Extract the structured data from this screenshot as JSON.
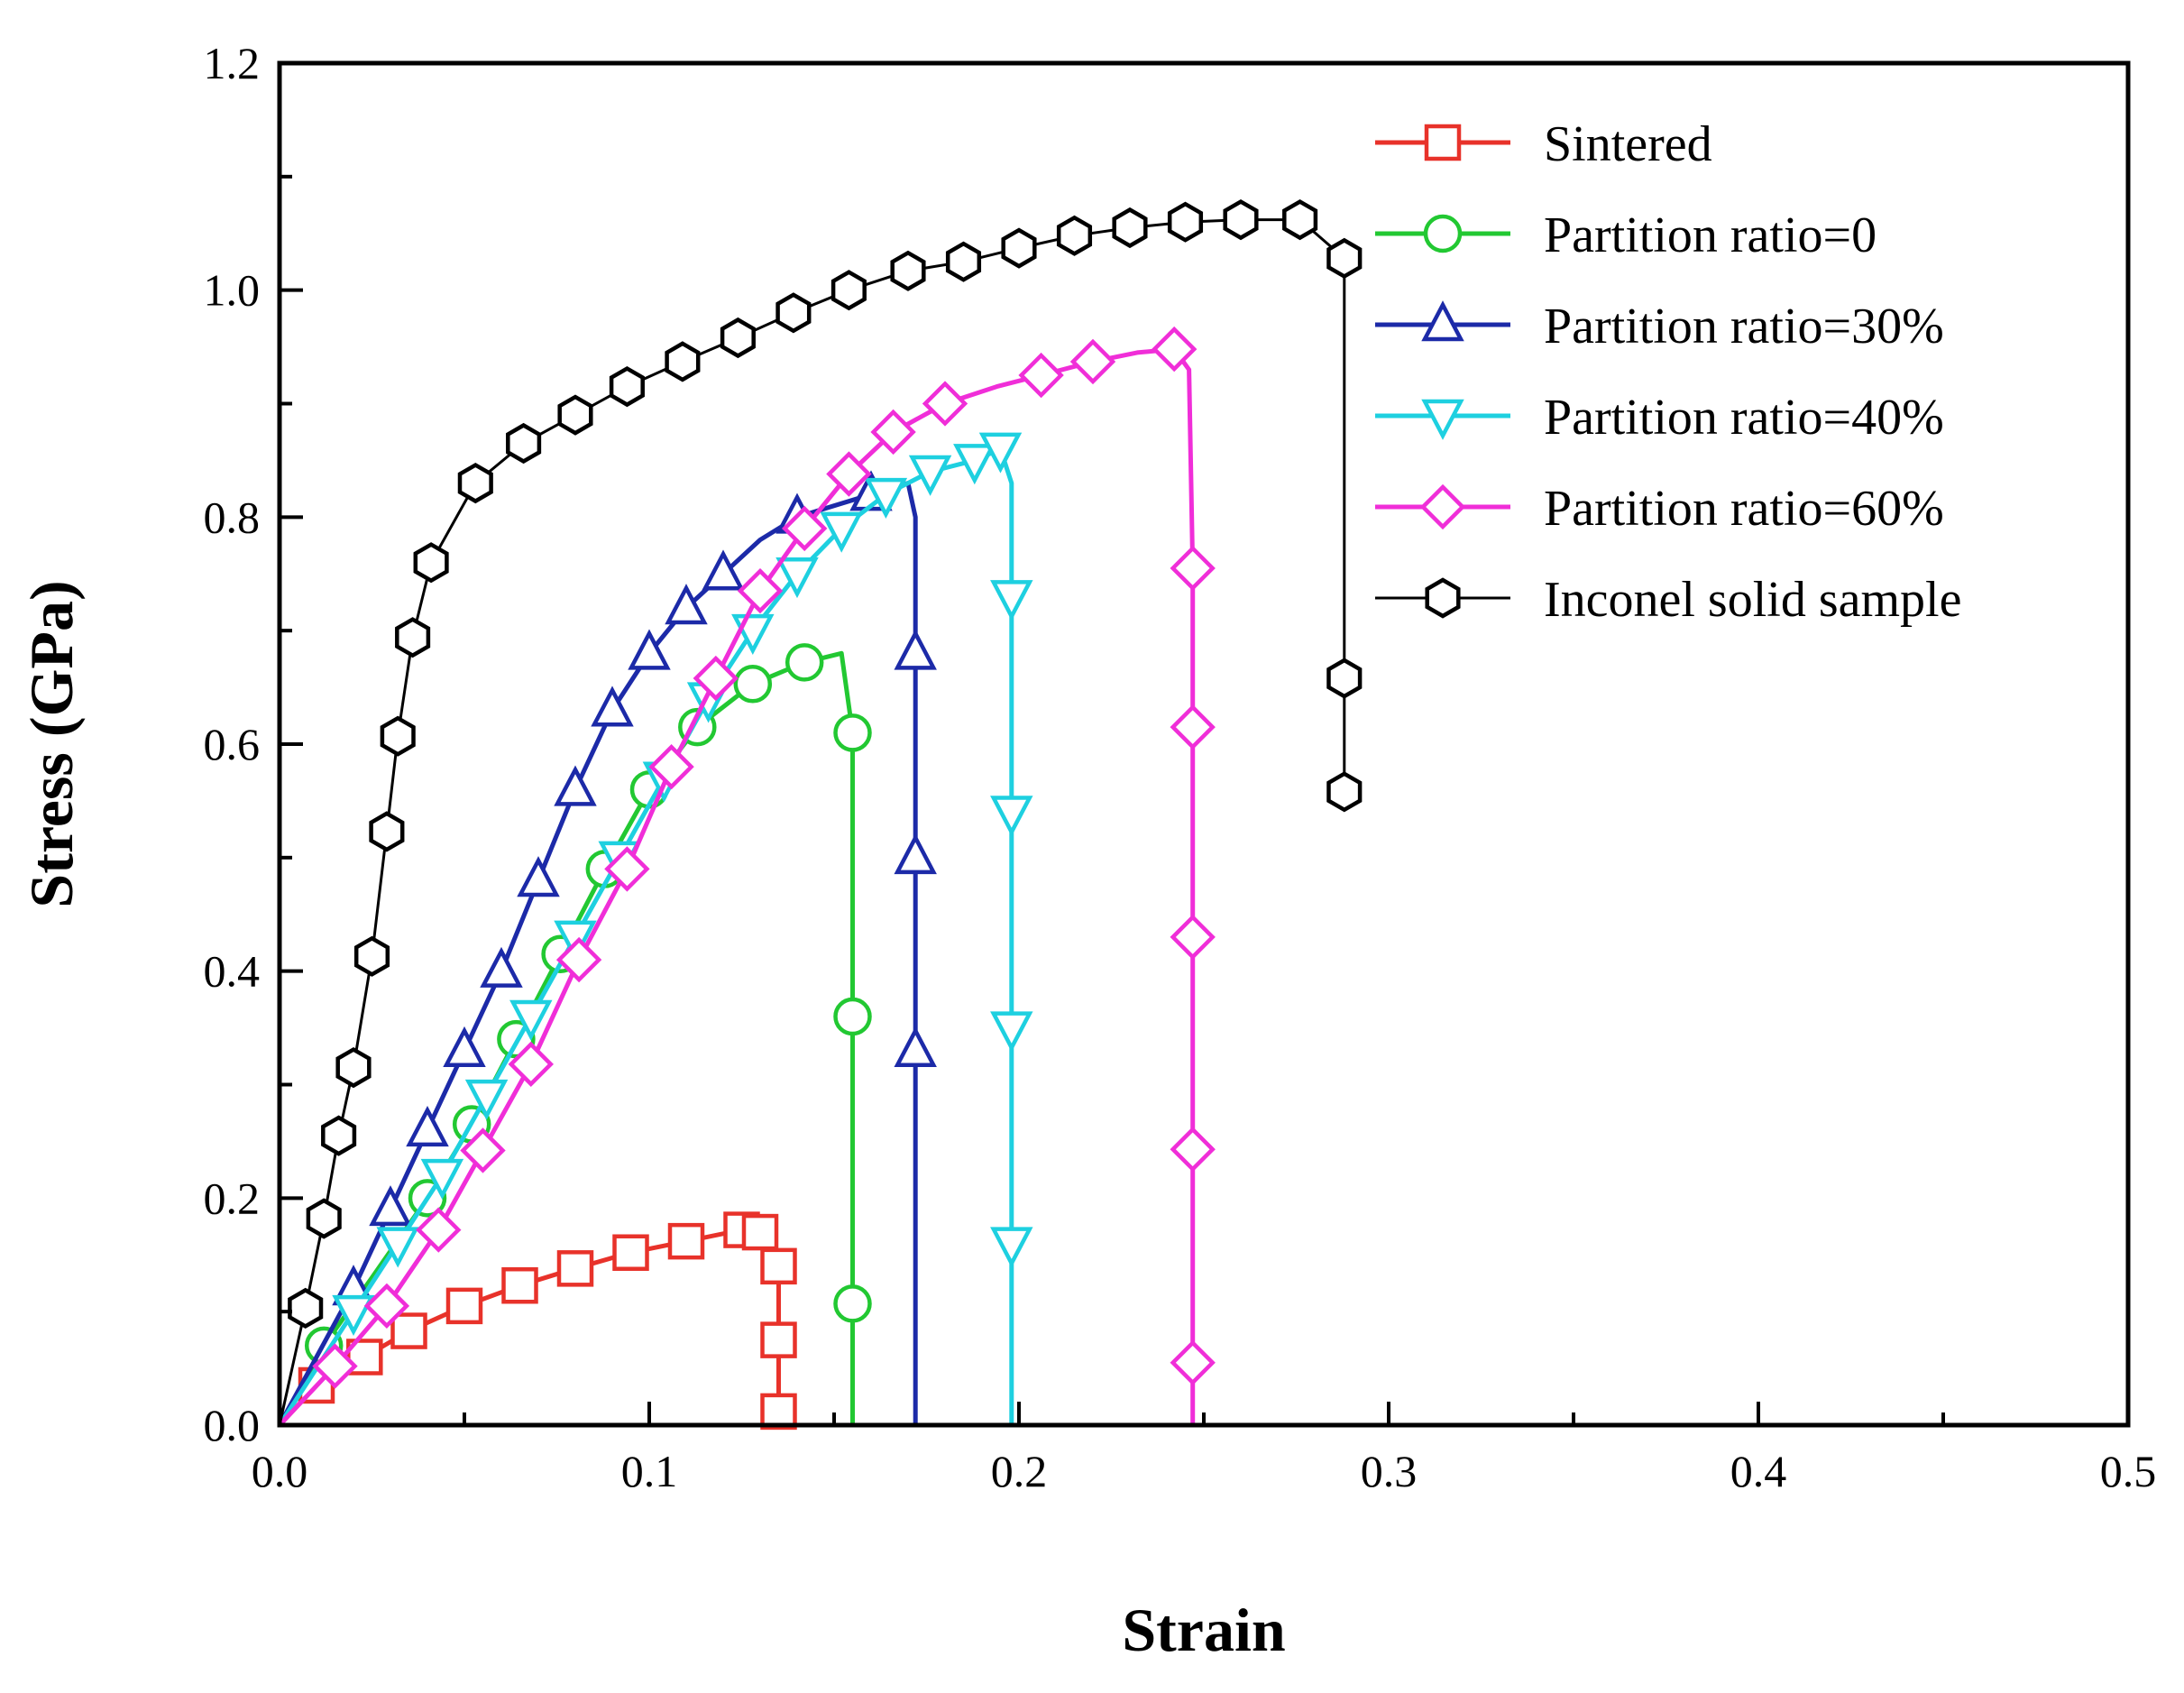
{
  "chart_data": {
    "type": "line",
    "title": "",
    "xlabel": "Strain",
    "ylabel": "Stress (GPa)",
    "xlim": [
      0.0,
      0.5
    ],
    "ylim": [
      0.0,
      1.2
    ],
    "xticks": [
      "0.0",
      "0.1",
      "0.2",
      "0.3",
      "0.4",
      "0.5"
    ],
    "yticks": [
      "0.0",
      "0.2",
      "0.4",
      "0.6",
      "0.8",
      "1.0",
      "1.2"
    ],
    "grid": false,
    "legend": "top-right",
    "series": [
      {
        "name": "Sintered",
        "color": "#e8322a",
        "marker": "square",
        "x": [
          0.0,
          0.01,
          0.023,
          0.035,
          0.05,
          0.065,
          0.08,
          0.095,
          0.11,
          0.125,
          0.13,
          0.135,
          0.135,
          0.135,
          0.135
        ],
        "y": [
          0.0,
          0.035,
          0.06,
          0.083,
          0.105,
          0.123,
          0.138,
          0.152,
          0.162,
          0.172,
          0.17,
          0.14,
          0.075,
          0.012,
          0.0
        ]
      },
      {
        "name": "Partition ratio=0",
        "color": "#22c832",
        "marker": "circle",
        "x": [
          0.0,
          0.012,
          0.025,
          0.04,
          0.052,
          0.064,
          0.076,
          0.088,
          0.1,
          0.113,
          0.128,
          0.142,
          0.152,
          0.155,
          0.155,
          0.155,
          0.155
        ],
        "y": [
          0.0,
          0.07,
          0.13,
          0.2,
          0.265,
          0.34,
          0.415,
          0.49,
          0.56,
          0.615,
          0.653,
          0.672,
          0.68,
          0.61,
          0.36,
          0.107,
          0.0
        ],
        "markers": [
          1,
          3,
          4,
          5,
          6,
          7,
          8,
          9,
          10,
          11,
          13,
          14,
          15
        ]
      },
      {
        "name": "Partition ratio=30%",
        "color": "#1c2aa8",
        "marker": "triangle-up",
        "x": [
          0.0,
          0.01,
          0.02,
          0.03,
          0.04,
          0.05,
          0.06,
          0.07,
          0.08,
          0.09,
          0.1,
          0.11,
          0.12,
          0.13,
          0.14,
          0.15,
          0.16,
          0.17,
          0.172,
          0.172,
          0.172,
          0.172,
          0.172
        ],
        "y": [
          0.0,
          0.06,
          0.12,
          0.19,
          0.26,
          0.33,
          0.4,
          0.48,
          0.56,
          0.63,
          0.68,
          0.72,
          0.75,
          0.78,
          0.8,
          0.81,
          0.82,
          0.83,
          0.8,
          0.68,
          0.5,
          0.33,
          0.0
        ],
        "markers": [
          2,
          3,
          4,
          5,
          6,
          7,
          8,
          9,
          10,
          11,
          12,
          14,
          16,
          19,
          20,
          21
        ]
      },
      {
        "name": "Partition ratio=40%",
        "color": "#1ed0e0",
        "marker": "triangle-down",
        "x": [
          0.0,
          0.01,
          0.02,
          0.032,
          0.044,
          0.056,
          0.068,
          0.08,
          0.092,
          0.104,
          0.116,
          0.128,
          0.14,
          0.152,
          0.164,
          0.176,
          0.188,
          0.195,
          0.198,
          0.198,
          0.198,
          0.198,
          0.198,
          0.198
        ],
        "y": [
          0.0,
          0.05,
          0.1,
          0.16,
          0.22,
          0.29,
          0.36,
          0.43,
          0.5,
          0.57,
          0.64,
          0.7,
          0.75,
          0.79,
          0.82,
          0.84,
          0.85,
          0.86,
          0.83,
          0.73,
          0.54,
          0.35,
          0.16,
          0.0
        ],
        "markers": [
          2,
          3,
          4,
          5,
          6,
          7,
          8,
          9,
          10,
          11,
          12,
          13,
          14,
          15,
          16,
          17,
          19,
          20,
          21,
          22
        ]
      },
      {
        "name": "Partition ratio=60%",
        "color": "#f02ed8",
        "marker": "diamond",
        "x": [
          0.0,
          0.015,
          0.029,
          0.043,
          0.055,
          0.068,
          0.081,
          0.094,
          0.106,
          0.118,
          0.13,
          0.142,
          0.154,
          0.166,
          0.18,
          0.194,
          0.206,
          0.22,
          0.232,
          0.242,
          0.246,
          0.247,
          0.247,
          0.247,
          0.247,
          0.247,
          0.247
        ],
        "y": [
          0.0,
          0.052,
          0.105,
          0.172,
          0.242,
          0.318,
          0.41,
          0.49,
          0.58,
          0.658,
          0.735,
          0.79,
          0.838,
          0.875,
          0.9,
          0.915,
          0.925,
          0.937,
          0.945,
          0.948,
          0.93,
          0.755,
          0.615,
          0.43,
          0.243,
          0.055,
          0.0
        ],
        "markers": [
          1,
          2,
          3,
          4,
          5,
          6,
          7,
          8,
          9,
          10,
          11,
          12,
          13,
          14,
          16,
          17,
          19,
          21,
          22,
          23,
          24,
          25
        ]
      },
      {
        "name": "Inconel solid sample",
        "color": "#000000",
        "marker": "hexagon",
        "x": [
          0.0,
          0.007,
          0.012,
          0.016,
          0.02,
          0.025,
          0.029,
          0.032,
          0.036,
          0.041,
          0.053,
          0.066,
          0.08,
          0.094,
          0.109,
          0.124,
          0.139,
          0.154,
          0.17,
          0.185,
          0.2,
          0.215,
          0.23,
          0.245,
          0.26,
          0.276,
          0.288,
          0.288,
          0.288
        ],
        "y": [
          0.0,
          0.103,
          0.182,
          0.255,
          0.315,
          0.413,
          0.523,
          0.607,
          0.694,
          0.76,
          0.83,
          0.865,
          0.89,
          0.915,
          0.937,
          0.958,
          0.98,
          1.0,
          1.017,
          1.025,
          1.037,
          1.048,
          1.055,
          1.06,
          1.062,
          1.062,
          1.028,
          0.658,
          0.558
        ]
      }
    ]
  }
}
